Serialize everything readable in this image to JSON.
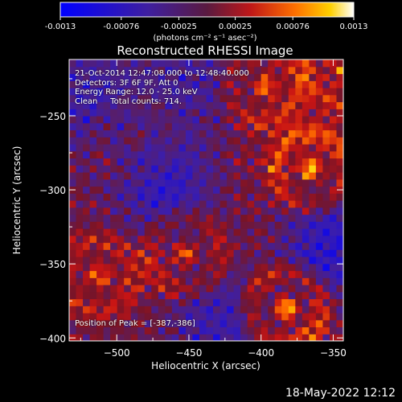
{
  "colorbar": {
    "ticks": [
      "-0.0013",
      "-0.00076",
      "-0.00025",
      "0.00025",
      "0.00076",
      "0.0013"
    ],
    "unit_label": "(photons cm⁻² s⁻¹ asec⁻²)",
    "range": [
      -0.0013,
      0.0013
    ]
  },
  "annotations": {
    "time_range": "21-Oct-2014 12:47:08.000 to 12:48:40.000",
    "detectors": "Detectors: 3F 6F 9F, Att 0",
    "energy": "Energy Range: 12.0 - 25.0 keV",
    "method": "Clean     Total counts: 714.",
    "peak": "Position of Peak = [-387,-386]"
  },
  "footer_timestamp": "18-May-2022 12:12",
  "colors": {
    "background": "#000000",
    "text": "#ffffff"
  },
  "chart_data": {
    "type": "heatmap",
    "title": "Reconstructed RHESSI Image",
    "xlabel": "Heliocentric X (arcsec)",
    "ylabel": "Heliocentric Y (arcsec)",
    "xlim": [
      -533,
      -343
    ],
    "ylim": [
      -402,
      -212
    ],
    "x_ticks": [
      -500,
      -450,
      -400,
      -350
    ],
    "y_ticks": [
      -400,
      -350,
      -300,
      -250
    ],
    "colormap": "blue-purple-red-orange-yellow-white",
    "hotspots": [
      {
        "x": -385,
        "y": -382,
        "value": 0.0013
      },
      {
        "x": -368,
        "y": -288,
        "value": 0.0011
      },
      {
        "x": -455,
        "y": -345,
        "value": 0.0009
      },
      {
        "x": -400,
        "y": -232,
        "value": 0.0008
      },
      {
        "x": -515,
        "y": -360,
        "value": 0.0007
      },
      {
        "x": -490,
        "y": -268,
        "value": 0.0005
      },
      {
        "x": -345,
        "y": -220,
        "value": 0.0007
      }
    ],
    "coldspots": [
      {
        "x": -470,
        "y": -300,
        "value": -0.0008
      },
      {
        "x": -520,
        "y": -240,
        "value": -0.0006
      },
      {
        "x": -430,
        "y": -390,
        "value": -0.0007
      },
      {
        "x": -355,
        "y": -340,
        "value": -0.0009
      },
      {
        "x": -450,
        "y": -228,
        "value": -0.0005
      }
    ]
  }
}
